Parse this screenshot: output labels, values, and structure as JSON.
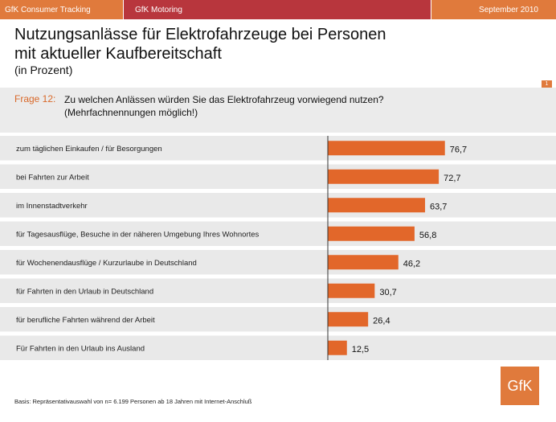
{
  "header": {
    "left": "GfK Consumer Tracking",
    "middle": "GfK Motoring",
    "right": "September 2010"
  },
  "title_line1": "Nutzungsanlässe für Elektrofahrzeuge bei Personen",
  "title_line2": "mit aktueller Kaufbereitschaft",
  "subtitle": "(in Prozent)",
  "page_number": "1",
  "question": {
    "label": "Frage 12:",
    "line1": "Zu welchen Anlässen würden Sie das Elektrofahrzeug vorwiegend nutzen?",
    "line2": "(Mehrfachnennungen möglich!)"
  },
  "footnote": "Basis: Repräsentativauswahl von n= 6.199 Personen ab 18 Jahren mit Internet-Anschluß",
  "logo": "GfK",
  "colors": {
    "bar": "#e2672a",
    "band": "#e9e9e9",
    "accent": "#e07a3c",
    "header_mid": "#b8363d"
  },
  "chart_data": {
    "type": "bar",
    "orientation": "horizontal",
    "categories": [
      "zum täglichen Einkaufen / für Besorgungen",
      "bei Fahrten zur Arbeit",
      "im Innenstadtverkehr",
      "für Tagesausflüge, Besuche in der näheren Umgebung Ihres Wohnortes",
      "für Wochenendausflüge / Kurzurlaube in Deutschland",
      "für Fahrten in den Urlaub in Deutschland",
      "für berufliche Fahrten während der Arbeit",
      "Für Fahrten in den Urlaub ins Ausland"
    ],
    "values": [
      76.7,
      72.7,
      63.7,
      56.8,
      46.2,
      30.7,
      26.4,
      12.5
    ],
    "value_labels": [
      "76,7",
      "72,7",
      "63,7",
      "56,8",
      "46,2",
      "30,7",
      "26,4",
      "12,5"
    ],
    "unit": "Prozent",
    "xlim": [
      0,
      100
    ],
    "grid": false
  }
}
